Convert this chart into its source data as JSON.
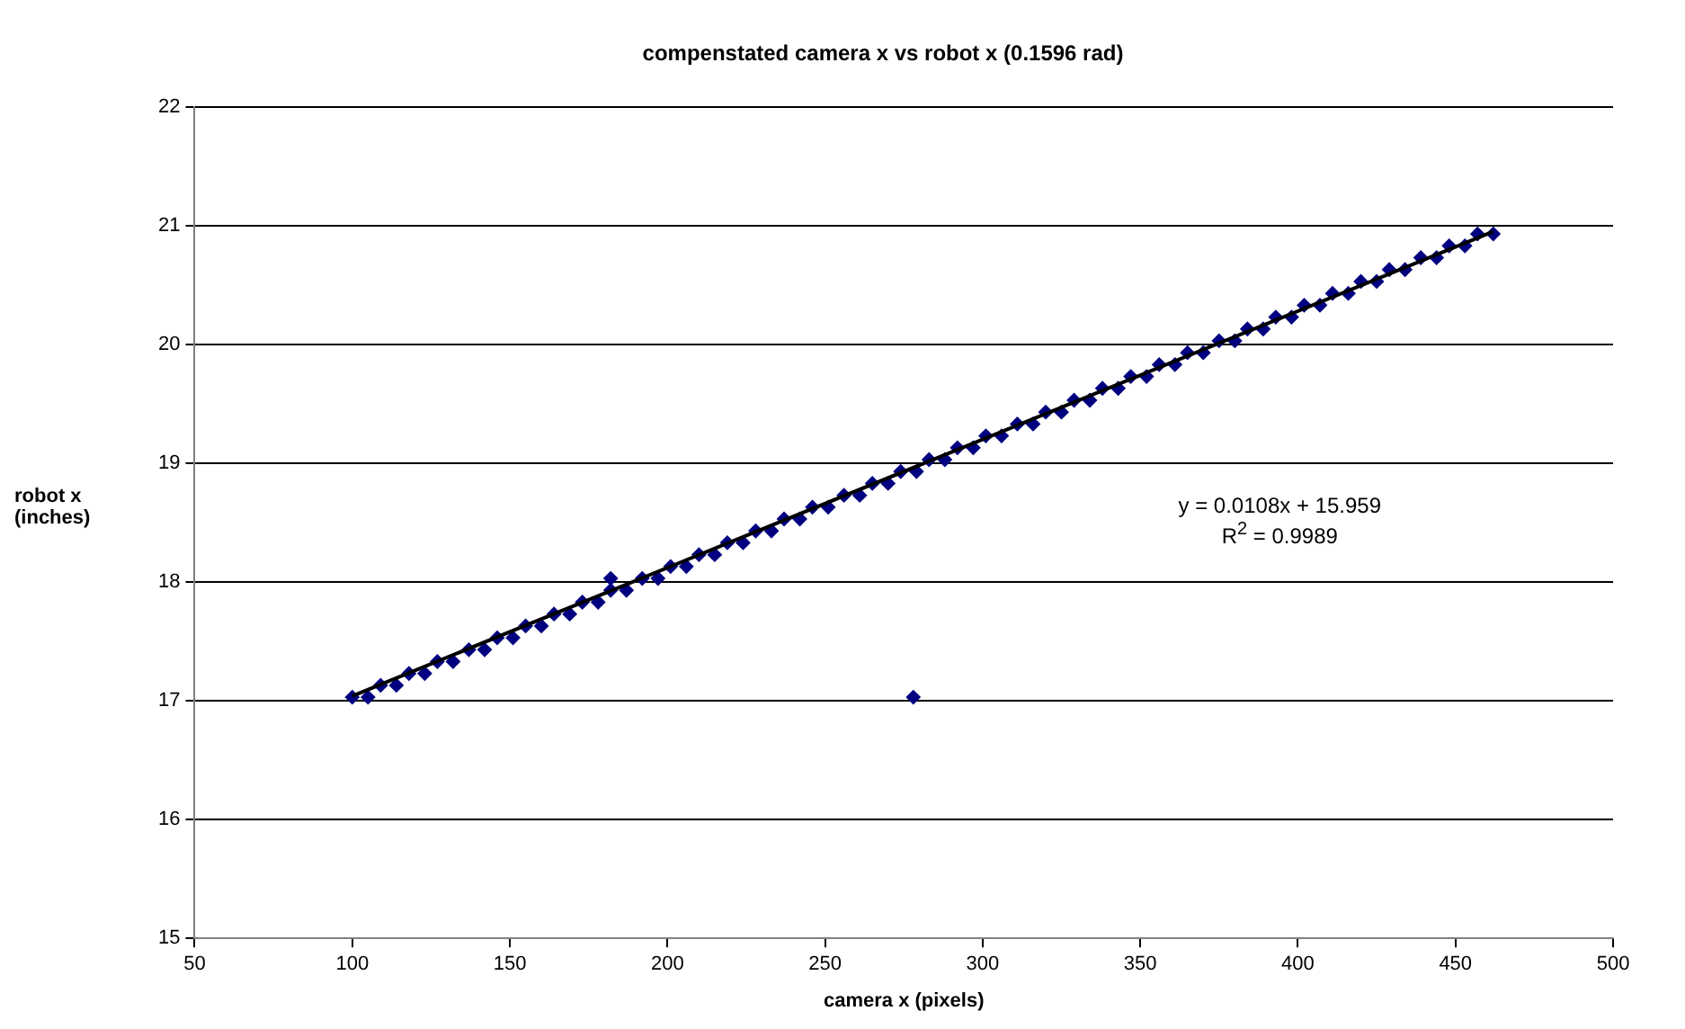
{
  "chart_data": {
    "type": "scatter",
    "title": "compenstated camera x vs robot x (0.1596 rad)",
    "xlabel": "camera x (pixels)",
    "ylabel": "robot x (inches)",
    "xlim": [
      50,
      500
    ],
    "xticks": [
      50,
      100,
      150,
      200,
      250,
      300,
      350,
      400,
      450,
      500
    ],
    "ylim": [
      15,
      22
    ],
    "yticks": [
      15,
      16,
      17,
      18,
      19,
      20,
      21,
      22
    ],
    "grid": "y",
    "legend": false,
    "marker": "diamond",
    "annotations": [
      "y = 0.0108x + 15.959",
      "R$^{2}$ = 0.9989"
    ],
    "series": [
      {
        "color": "#000080",
        "x": [
          100,
          105,
          109,
          114,
          118,
          123,
          127,
          132,
          137,
          142,
          146,
          151,
          155,
          160,
          164,
          169,
          173,
          178,
          182,
          187,
          192,
          197,
          201,
          206,
          210,
          215,
          219,
          224,
          228,
          233,
          237,
          242,
          246,
          251,
          256,
          261,
          265,
          270,
          274,
          279,
          283,
          288,
          292,
          297,
          301,
          306,
          311,
          316,
          320,
          325,
          329,
          334,
          338,
          343,
          347,
          352,
          356,
          361,
          365,
          370,
          375,
          380,
          384,
          389,
          393,
          398,
          402,
          407,
          411,
          416,
          420,
          425,
          429,
          434,
          439,
          444,
          448,
          453,
          457,
          462,
          182,
          278
        ],
        "values": [
          17.03,
          17.03,
          17.13,
          17.13,
          17.23,
          17.23,
          17.33,
          17.33,
          17.43,
          17.43,
          17.53,
          17.53,
          17.63,
          17.63,
          17.73,
          17.73,
          17.83,
          17.83,
          17.93,
          17.93,
          18.03,
          18.03,
          18.13,
          18.13,
          18.23,
          18.23,
          18.33,
          18.33,
          18.43,
          18.43,
          18.53,
          18.53,
          18.63,
          18.63,
          18.73,
          18.73,
          18.83,
          18.83,
          18.93,
          18.93,
          19.03,
          19.03,
          19.13,
          19.13,
          19.23,
          19.23,
          19.33,
          19.33,
          19.43,
          19.43,
          19.53,
          19.53,
          19.63,
          19.63,
          19.73,
          19.73,
          19.83,
          19.83,
          19.93,
          19.93,
          20.03,
          20.03,
          20.13,
          20.13,
          20.23,
          20.23,
          20.33,
          20.33,
          20.43,
          20.43,
          20.53,
          20.53,
          20.63,
          20.63,
          20.73,
          20.73,
          20.83,
          20.83,
          20.93,
          20.93,
          18.03,
          17.03
        ]
      },
      {
        "type": "line",
        "color": "#000000",
        "marker": "none",
        "x": [
          100,
          462
        ],
        "values": [
          17.04,
          20.95
        ]
      }
    ]
  }
}
